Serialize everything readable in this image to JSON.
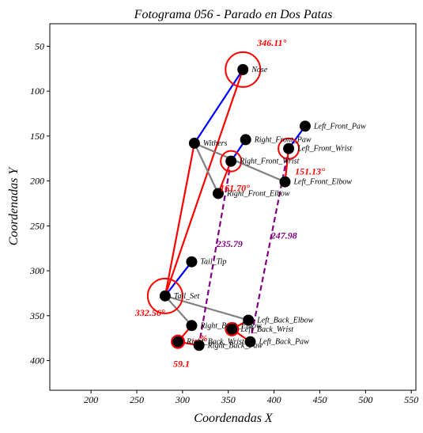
{
  "chart_data": {
    "type": "scatter",
    "title": "Fotograma 056 - Parado en Dos Patas",
    "xlabel": "Coordenadas X",
    "ylabel": "Coordenadas Y",
    "xlim": [
      155,
      555
    ],
    "ylim": [
      433,
      25
    ],
    "y_inverted": true,
    "grid": false,
    "legend": "none",
    "xticks": [
      200,
      250,
      300,
      350,
      400,
      450,
      500,
      550
    ],
    "yticks": [
      50,
      100,
      150,
      200,
      250,
      300,
      350,
      400
    ],
    "keypoints": [
      {
        "name": "Nose",
        "x": 366,
        "y": 76
      },
      {
        "name": "Withers",
        "x": 313,
        "y": 158
      },
      {
        "name": "Right_Front_Paw",
        "x": 369,
        "y": 154
      },
      {
        "name": "Left_Front_Paw",
        "x": 434,
        "y": 139
      },
      {
        "name": "Left_Front_Wrist",
        "x": 416,
        "y": 164
      },
      {
        "name": "Right_Front_Wrist",
        "x": 353,
        "y": 178
      },
      {
        "name": "Left_Front_Elbow",
        "x": 412,
        "y": 201
      },
      {
        "name": "Right_Front_Elbow",
        "x": 339,
        "y": 214
      },
      {
        "name": "Tail_Tip",
        "x": 310,
        "y": 290
      },
      {
        "name": "Tail_Set",
        "x": 281,
        "y": 328
      },
      {
        "name": "Left_Back_Elbow",
        "x": 372,
        "y": 355
      },
      {
        "name": "Right_Back_Elbow",
        "x": 310,
        "y": 361
      },
      {
        "name": "Left_Back_Wrist",
        "x": 354,
        "y": 365
      },
      {
        "name": "Right_Back_Wrist",
        "x": 295,
        "y": 379
      },
      {
        "name": "Left_Back_Paw",
        "x": 374,
        "y": 379
      },
      {
        "name": "Right_Back_Paw",
        "x": 318,
        "y": 383
      }
    ],
    "skeleton_segments": [
      {
        "from": "Nose",
        "to": "Withers",
        "color": "#0000ff"
      },
      {
        "from": "Nose",
        "to": "Tail_Set",
        "color": "#ff0000"
      },
      {
        "from": "Withers",
        "to": "Tail_Set",
        "color": "#ff0000"
      },
      {
        "from": "Withers",
        "to": "Left_Front_Elbow",
        "color": "#808080"
      },
      {
        "from": "Withers",
        "to": "Right_Front_Elbow",
        "color": "#808080"
      },
      {
        "from": "Left_Front_Elbow",
        "to": "Left_Front_Wrist",
        "color": "#ff0000"
      },
      {
        "from": "Left_Front_Wrist",
        "to": "Left_Front_Paw",
        "color": "#0000ff"
      },
      {
        "from": "Right_Front_Elbow",
        "to": "Right_Front_Wrist",
        "color": "#ff0000"
      },
      {
        "from": "Right_Front_Wrist",
        "to": "Right_Front_Paw",
        "color": "#0000ff"
      },
      {
        "from": "Tail_Set",
        "to": "Tail_Tip",
        "color": "#0000ff"
      },
      {
        "from": "Tail_Set",
        "to": "Left_Back_Elbow",
        "color": "#808080"
      },
      {
        "from": "Tail_Set",
        "to": "Right_Back_Elbow",
        "color": "#808080"
      },
      {
        "from": "Left_Back_Elbow",
        "to": "Left_Back_Wrist",
        "color": "#ff0000"
      },
      {
        "from": "Left_Back_Wrist",
        "to": "Left_Back_Paw",
        "color": "#ff0000"
      },
      {
        "from": "Right_Back_Elbow",
        "to": "Right_Back_Wrist",
        "color": "#ff0000"
      },
      {
        "from": "Right_Back_Wrist",
        "to": "Right_Back_Paw",
        "color": "#ff0000"
      }
    ],
    "distance_lines": [
      {
        "from": "Right_Front_Wrist",
        "to": "Right_Back_Paw",
        "label": "235.79",
        "color": "#800080"
      },
      {
        "from": "Left_Front_Wrist",
        "to": "Left_Back_Paw",
        "label": "247.98",
        "color": "#800080"
      }
    ],
    "angles": [
      {
        "at": "Nose",
        "label": "346.11°",
        "color": "#ff0000"
      },
      {
        "at": "Right_Front_Wrist",
        "label": "161.70°",
        "color": "#ff0000"
      },
      {
        "at": "Left_Front_Wrist",
        "label": "151.13°",
        "color": "#ff0000"
      },
      {
        "at": "Tail_Set",
        "label": "332.56°",
        "color": "#ff0000"
      },
      {
        "at": "Right_Back_Wrist",
        "label": "59.1",
        "color": "#ff0000"
      },
      {
        "at": "Left_Back_Wrist",
        "label": "...%",
        "color": "#ff0000"
      }
    ]
  }
}
